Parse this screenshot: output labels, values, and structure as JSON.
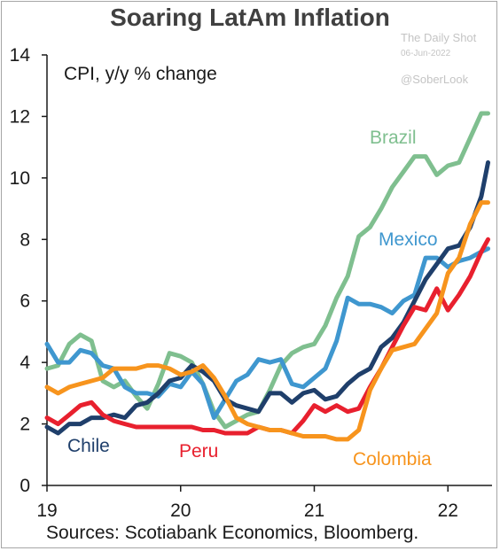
{
  "chart_data": {
    "type": "line",
    "title": "Soaring LatAm Inflation",
    "ylabel": "CPI, y/y % change",
    "source": "Sources: Scotiabank Economics, Bloomberg.",
    "watermark": [
      "The Daily Shot",
      "06-Jun-2022",
      "@SoberLook"
    ],
    "ylim": [
      0,
      14
    ],
    "yticks": [
      0,
      2,
      4,
      6,
      8,
      10,
      12,
      14
    ],
    "xlim": [
      2019.0,
      2022.33
    ],
    "xticks": [
      {
        "value": 2019,
        "label": "19"
      },
      {
        "value": 2020,
        "label": "20"
      },
      {
        "value": 2021,
        "label": "21"
      },
      {
        "value": 2022,
        "label": "22"
      }
    ],
    "grid": false,
    "legend": "inline labels",
    "series": [
      {
        "name": "Brazil",
        "color": "#7fbf8f",
        "x": [
          2019.0,
          2019.083,
          2019.167,
          2019.25,
          2019.333,
          2019.417,
          2019.5,
          2019.583,
          2019.667,
          2019.75,
          2019.833,
          2019.917,
          2020.0,
          2020.083,
          2020.167,
          2020.25,
          2020.333,
          2020.417,
          2020.5,
          2020.583,
          2020.667,
          2020.75,
          2020.833,
          2020.917,
          2021.0,
          2021.083,
          2021.167,
          2021.25,
          2021.333,
          2021.417,
          2021.5,
          2021.583,
          2021.667,
          2021.75,
          2021.833,
          2021.917,
          2022.0,
          2022.083,
          2022.167,
          2022.25,
          2022.3
        ],
        "y": [
          3.8,
          3.9,
          4.6,
          4.9,
          4.7,
          3.4,
          3.2,
          3.4,
          2.9,
          2.5,
          3.3,
          4.3,
          4.2,
          4.0,
          3.3,
          2.4,
          1.9,
          2.1,
          2.3,
          2.4,
          3.1,
          3.9,
          4.3,
          4.5,
          4.6,
          5.2,
          6.1,
          6.8,
          8.1,
          8.4,
          9.0,
          9.7,
          10.2,
          10.7,
          10.7,
          10.1,
          10.4,
          10.5,
          11.3,
          12.1,
          12.1
        ]
      },
      {
        "name": "Mexico",
        "color": "#3f97cf",
        "x": [
          2019.0,
          2019.083,
          2019.167,
          2019.25,
          2019.333,
          2019.417,
          2019.5,
          2019.583,
          2019.667,
          2019.75,
          2019.833,
          2019.917,
          2020.0,
          2020.083,
          2020.167,
          2020.25,
          2020.333,
          2020.417,
          2020.5,
          2020.583,
          2020.667,
          2020.75,
          2020.833,
          2020.917,
          2021.0,
          2021.083,
          2021.167,
          2021.25,
          2021.333,
          2021.417,
          2021.5,
          2021.583,
          2021.667,
          2021.75,
          2021.833,
          2021.917,
          2022.0,
          2022.083,
          2022.167,
          2022.25,
          2022.3
        ],
        "y": [
          4.6,
          4.0,
          4.0,
          4.4,
          4.3,
          3.9,
          3.8,
          3.2,
          3.0,
          3.0,
          2.9,
          3.3,
          3.2,
          3.7,
          3.3,
          2.2,
          2.8,
          3.4,
          3.6,
          4.1,
          4.0,
          4.1,
          3.3,
          3.2,
          3.5,
          3.8,
          4.7,
          6.1,
          5.9,
          5.9,
          5.8,
          5.6,
          6.0,
          6.2,
          7.4,
          7.4,
          7.1,
          7.3,
          7.4,
          7.6,
          7.7
        ]
      },
      {
        "name": "Chile",
        "color": "#1f3f6b",
        "x": [
          2019.0,
          2019.083,
          2019.167,
          2019.25,
          2019.333,
          2019.417,
          2019.5,
          2019.583,
          2019.667,
          2019.75,
          2019.833,
          2019.917,
          2020.0,
          2020.083,
          2020.167,
          2020.25,
          2020.333,
          2020.417,
          2020.5,
          2020.583,
          2020.667,
          2020.75,
          2020.833,
          2020.917,
          2021.0,
          2021.083,
          2021.167,
          2021.25,
          2021.333,
          2021.417,
          2021.5,
          2021.583,
          2021.667,
          2021.75,
          2021.833,
          2021.917,
          2022.0,
          2022.083,
          2022.167,
          2022.25,
          2022.3
        ],
        "y": [
          1.9,
          1.7,
          2.0,
          2.0,
          2.2,
          2.2,
          2.3,
          2.2,
          2.6,
          2.7,
          3.0,
          3.4,
          3.5,
          3.9,
          3.7,
          3.4,
          2.8,
          2.6,
          2.5,
          2.4,
          3.0,
          3.0,
          2.7,
          3.0,
          3.1,
          2.8,
          2.9,
          3.3,
          3.6,
          3.8,
          4.5,
          4.8,
          5.3,
          6.0,
          6.7,
          7.2,
          7.7,
          7.8,
          8.4,
          9.4,
          10.5
        ]
      },
      {
        "name": "Peru",
        "color": "#e8202e",
        "x": [
          2019.0,
          2019.083,
          2019.167,
          2019.25,
          2019.333,
          2019.417,
          2019.5,
          2019.583,
          2019.667,
          2019.75,
          2019.833,
          2019.917,
          2020.0,
          2020.083,
          2020.167,
          2020.25,
          2020.333,
          2020.417,
          2020.5,
          2020.583,
          2020.667,
          2020.75,
          2020.833,
          2020.917,
          2021.0,
          2021.083,
          2021.167,
          2021.25,
          2021.333,
          2021.417,
          2021.5,
          2021.583,
          2021.667,
          2021.75,
          2021.833,
          2021.917,
          2022.0,
          2022.083,
          2022.167,
          2022.25,
          2022.3
        ],
        "y": [
          2.2,
          2.0,
          2.3,
          2.6,
          2.7,
          2.3,
          2.1,
          2.0,
          1.9,
          1.9,
          1.9,
          1.9,
          1.9,
          1.9,
          1.8,
          1.8,
          1.7,
          1.7,
          1.7,
          1.9,
          1.8,
          1.8,
          1.7,
          2.1,
          2.6,
          2.4,
          2.6,
          2.4,
          2.5,
          3.2,
          3.8,
          4.5,
          5.2,
          5.8,
          5.7,
          6.4,
          5.7,
          6.2,
          6.8,
          7.6,
          8.0
        ]
      },
      {
        "name": "Colombia",
        "color": "#f7941d",
        "x": [
          2019.0,
          2019.083,
          2019.167,
          2019.25,
          2019.333,
          2019.417,
          2019.5,
          2019.583,
          2019.667,
          2019.75,
          2019.833,
          2019.917,
          2020.0,
          2020.083,
          2020.167,
          2020.25,
          2020.333,
          2020.417,
          2020.5,
          2020.583,
          2020.667,
          2020.75,
          2020.833,
          2020.917,
          2021.0,
          2021.083,
          2021.167,
          2021.25,
          2021.333,
          2021.417,
          2021.5,
          2021.583,
          2021.667,
          2021.75,
          2021.833,
          2021.917,
          2022.0,
          2022.083,
          2022.167,
          2022.25,
          2022.3
        ],
        "y": [
          3.2,
          3.0,
          3.2,
          3.3,
          3.4,
          3.5,
          3.8,
          3.8,
          3.8,
          3.9,
          3.9,
          3.8,
          3.6,
          3.7,
          3.9,
          3.5,
          2.9,
          2.2,
          2.0,
          1.9,
          1.8,
          1.8,
          1.7,
          1.6,
          1.6,
          1.6,
          1.5,
          1.5,
          1.8,
          3.1,
          3.8,
          4.4,
          4.5,
          4.6,
          5.1,
          5.6,
          6.9,
          7.4,
          8.5,
          9.2,
          9.2
        ]
      }
    ]
  }
}
